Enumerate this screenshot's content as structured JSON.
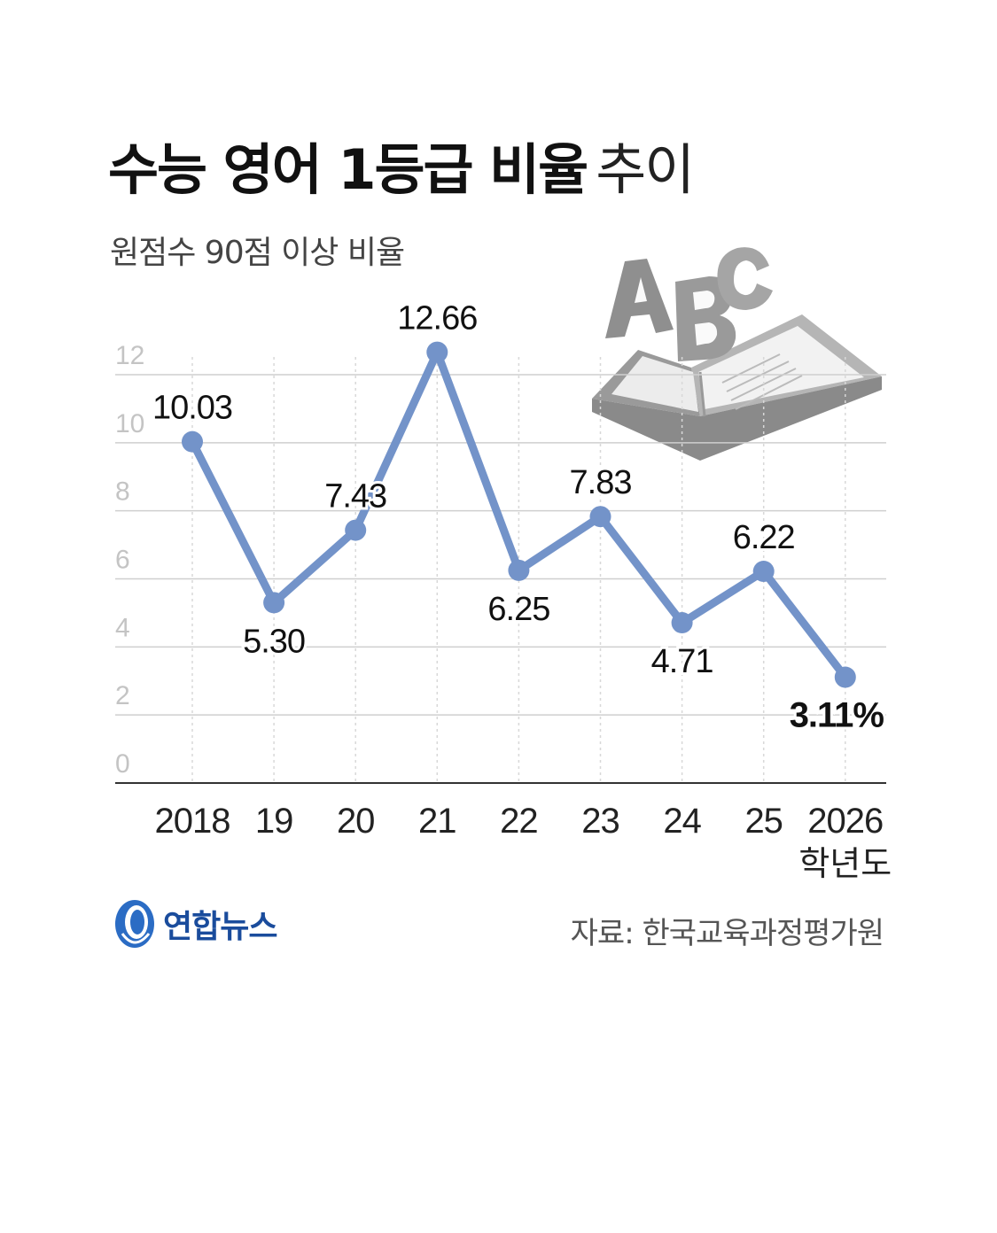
{
  "header": {
    "title_bold": "수능 영어 1등급 비율",
    "title_light": "추이",
    "subtitle": "원점수 90점 이상 비율"
  },
  "chart_data": {
    "type": "line",
    "title": "수능 영어 1등급 비율 추이",
    "subtitle": "원점수 90점 이상 비율",
    "categories": [
      "2018",
      "19",
      "20",
      "21",
      "22",
      "23",
      "24",
      "25",
      "2026"
    ],
    "x_unit_label": "학년도",
    "series": [
      {
        "values": [
          10.03,
          5.3,
          7.43,
          12.66,
          6.25,
          7.83,
          4.71,
          6.22,
          3.11
        ]
      }
    ],
    "value_labels": [
      "10.03",
      "5.30",
      "7.43",
      "12.66",
      "6.25",
      "7.83",
      "4.71",
      "6.22",
      "3.11%"
    ],
    "label_positions": [
      "above",
      "below",
      "above",
      "above",
      "below",
      "above",
      "below",
      "above",
      "below"
    ],
    "ylim": [
      0,
      12
    ],
    "yticks": [
      0,
      2,
      4,
      6,
      8,
      10,
      12
    ],
    "grid": true,
    "line_color": "#7393c9"
  },
  "footer": {
    "logo_text": "연합뉴스",
    "source": "자료: 한국교육과정평가원"
  }
}
